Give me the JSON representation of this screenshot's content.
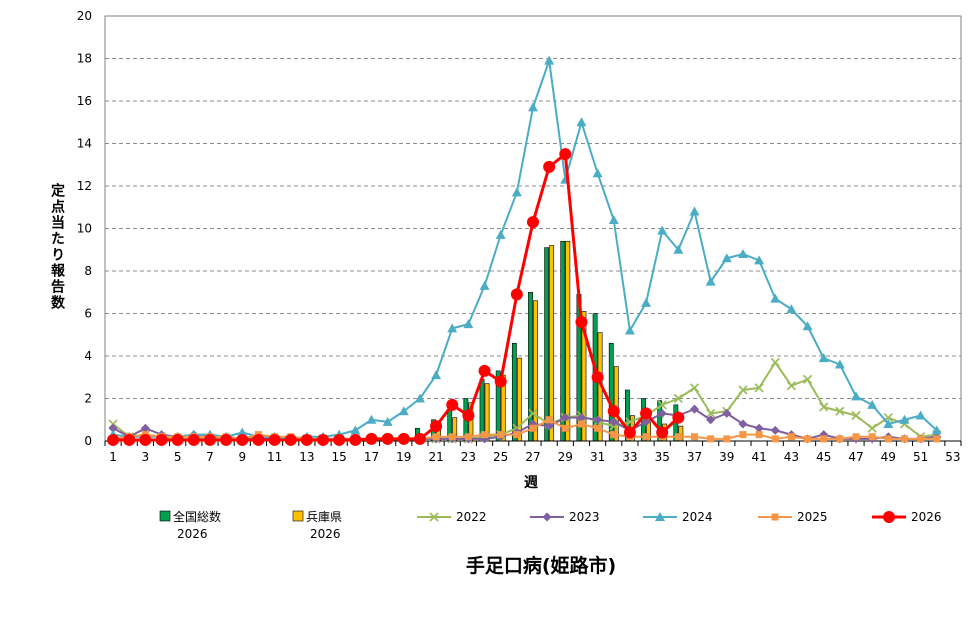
{
  "chart_data": {
    "type": "bar+line",
    "title": "手足口病(姫路市)",
    "xlabel": "週",
    "ylabel": "定点当たり報告数",
    "ylim": [
      0,
      20
    ],
    "yticks": [
      0,
      2,
      4,
      6,
      8,
      10,
      12,
      14,
      16,
      18,
      20
    ],
    "xticks": [
      1,
      3,
      5,
      7,
      9,
      11,
      13,
      15,
      17,
      19,
      21,
      23,
      25,
      27,
      29,
      31,
      33,
      35,
      37,
      39,
      41,
      43,
      45,
      47,
      49,
      51,
      53
    ],
    "weeks": 53,
    "grid": "horizontal dashed",
    "legend_position": "bottom",
    "bar_series": [
      {
        "name": "全国総数\n2026",
        "color": "#00a050",
        "values": [
          0.05,
          0.05,
          0.05,
          0.05,
          0.05,
          0.05,
          0.05,
          0.05,
          0.05,
          0.05,
          0.05,
          0.05,
          0.05,
          0.05,
          0.05,
          0.05,
          0.05,
          0.05,
          0.1,
          0.6,
          1.0,
          1.5,
          2.0,
          2.9,
          3.3,
          4.6,
          7.0,
          9.1,
          9.4,
          6.9,
          6.0,
          4.6,
          2.4,
          2.0,
          1.9,
          1.7
        ]
      },
      {
        "name": "兵庫県\n2026",
        "color": "#ffc000",
        "values": [
          0.05,
          0.05,
          0.05,
          0.05,
          0.05,
          0.05,
          0.05,
          0.05,
          0.05,
          0.05,
          0.05,
          0.05,
          0.05,
          0.05,
          0.05,
          0.05,
          0.05,
          0.05,
          0.1,
          0.3,
          0.7,
          1.1,
          1.8,
          2.7,
          3.1,
          3.9,
          6.6,
          9.2,
          9.4,
          6.1,
          5.1,
          3.5,
          1.2,
          0.9,
          0.8,
          0.7
        ]
      }
    ],
    "line_series": [
      {
        "name": "2022",
        "color": "#9bbb59",
        "marker": "x",
        "values": [
          0.8,
          0.2,
          0.3,
          0.2,
          0.1,
          0.1,
          0.1,
          0.1,
          0.1,
          0.1,
          0.1,
          0.1,
          0.1,
          0.1,
          0.1,
          0.1,
          0.1,
          0.1,
          0.1,
          0.1,
          0.1,
          0.1,
          0.1,
          0.2,
          0.3,
          0.6,
          1.3,
          0.8,
          1.1,
          1.2,
          0.9,
          0.7,
          0.9,
          1.2,
          1.7,
          2.0,
          2.5,
          1.3,
          1.4,
          2.4,
          2.5,
          3.7,
          2.6,
          2.9,
          1.6,
          1.4,
          1.2,
          0.6,
          1.1,
          0.8,
          0.2,
          0.3
        ]
      },
      {
        "name": "2023",
        "color": "#7f5f9f",
        "marker": "diamond",
        "values": [
          0.6,
          0.2,
          0.6,
          0.3,
          0.2,
          0.3,
          0.2,
          0.2,
          0.1,
          0.2,
          0.1,
          0.1,
          0.1,
          0.1,
          0.1,
          0.1,
          0.1,
          0.1,
          0.1,
          0.1,
          0.1,
          0.1,
          0.1,
          0.1,
          0.2,
          0.4,
          0.8,
          0.7,
          1.1,
          1.1,
          1.0,
          0.9,
          0.5,
          0.9,
          1.3,
          1.2,
          1.5,
          1.0,
          1.3,
          0.8,
          0.6,
          0.5,
          0.3,
          0.1,
          0.3,
          0.1,
          0.1,
          0.1,
          0.2,
          0.1,
          0.1,
          0.2
        ]
      },
      {
        "name": "2024",
        "color": "#4bacc6",
        "marker": "triangle",
        "values": [
          0.3,
          0.2,
          0.2,
          0.2,
          0.2,
          0.3,
          0.3,
          0.2,
          0.4,
          0.2,
          0.2,
          0.1,
          0.2,
          0.2,
          0.3,
          0.5,
          1.0,
          0.9,
          1.4,
          2.0,
          3.1,
          5.3,
          5.5,
          7.3,
          9.7,
          11.7,
          15.7,
          17.9,
          12.3,
          15.0,
          12.6,
          10.4,
          5.2,
          6.5,
          9.9,
          9.0,
          10.8,
          7.5,
          8.6,
          8.8,
          8.5,
          6.7,
          6.2,
          5.4,
          3.9,
          3.6,
          2.1,
          1.7,
          0.8,
          1.0,
          1.2,
          0.5
        ]
      },
      {
        "name": "2025",
        "color": "#f79646",
        "marker": "square",
        "values": [
          0.1,
          0.2,
          0.3,
          0.2,
          0.2,
          0.2,
          0.2,
          0.2,
          0.1,
          0.3,
          0.2,
          0.2,
          0.1,
          0.1,
          0.1,
          0.1,
          0.1,
          0.1,
          0.1,
          0.1,
          0.2,
          0.2,
          0.2,
          0.3,
          0.3,
          0.3,
          0.6,
          1.0,
          0.6,
          0.8,
          0.6,
          0.3,
          0.2,
          0.2,
          0.2,
          0.2,
          0.2,
          0.1,
          0.1,
          0.3,
          0.3,
          0.1,
          0.2,
          0.1,
          0.1,
          0.1,
          0.2,
          0.2,
          0.1,
          0.1,
          0.1,
          0.1
        ]
      },
      {
        "name": "2026",
        "color": "#ff0000",
        "marker": "circle",
        "values": [
          0.05,
          0.05,
          0.05,
          0.05,
          0.05,
          0.05,
          0.05,
          0.05,
          0.05,
          0.05,
          0.05,
          0.05,
          0.05,
          0.05,
          0.05,
          0.05,
          0.1,
          0.1,
          0.1,
          0.1,
          0.7,
          1.7,
          1.2,
          3.3,
          2.8,
          6.9,
          10.3,
          12.9,
          13.5,
          5.6,
          3.0,
          1.4,
          0.4,
          1.3,
          0.4,
          1.1
        ]
      }
    ]
  }
}
